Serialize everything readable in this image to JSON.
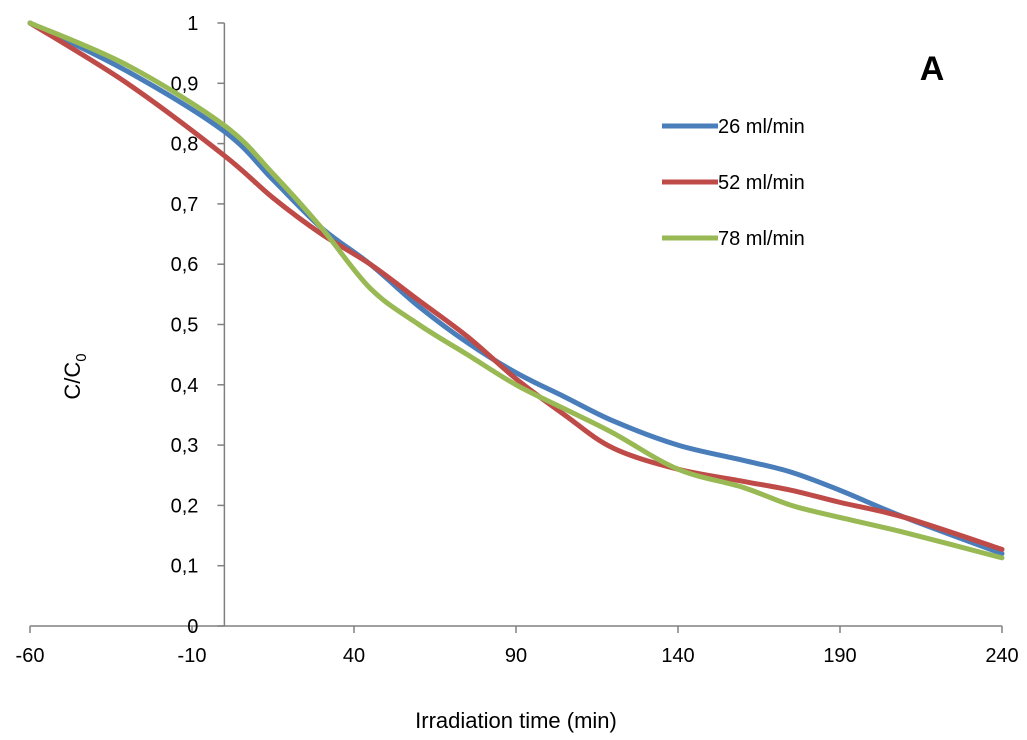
{
  "chart_data": {
    "type": "line",
    "title": "",
    "panel_label": "A",
    "xlabel": "Irradiation time (min)",
    "ylabel_main": "C/C",
    "ylabel_sub": "0",
    "xlim": [
      -60,
      240
    ],
    "ylim": [
      0,
      1
    ],
    "x_ticks": [
      -60,
      -10,
      40,
      90,
      140,
      190,
      240
    ],
    "x_tick_labels": [
      "-60",
      "-10",
      "40",
      "90",
      "140",
      "190",
      "240"
    ],
    "y_ticks": [
      0,
      0.1,
      0.2,
      0.3,
      0.4,
      0.5,
      0.6,
      0.7,
      0.8,
      0.9,
      1
    ],
    "y_tick_labels": [
      "0",
      "0,1",
      "0,2",
      "0,3",
      "0,4",
      "0,5",
      "0,6",
      "0,7",
      "0,8",
      "0,9",
      "1"
    ],
    "y_axis_at_x": 0,
    "grid": false,
    "legend_position": "top-right",
    "series": [
      {
        "name": "26 ml/min",
        "color": "#4a7ebb",
        "x": [
          -60,
          -30,
          0,
          15,
          30,
          45,
          60,
          75,
          90,
          105,
          120,
          140,
          160,
          175,
          190,
          210,
          240
        ],
        "y": [
          1.0,
          0.92,
          0.82,
          0.74,
          0.66,
          0.6,
          0.53,
          0.47,
          0.42,
          0.38,
          0.34,
          0.3,
          0.275,
          0.255,
          0.225,
          0.18,
          0.12
        ]
      },
      {
        "name": "52 ml/min",
        "color": "#be4b48",
        "x": [
          -60,
          -30,
          0,
          15,
          30,
          45,
          60,
          75,
          90,
          105,
          120,
          140,
          160,
          175,
          190,
          210,
          240
        ],
        "y": [
          1.0,
          0.9,
          0.78,
          0.71,
          0.65,
          0.6,
          0.54,
          0.48,
          0.41,
          0.35,
          0.295,
          0.26,
          0.24,
          0.225,
          0.205,
          0.18,
          0.127
        ]
      },
      {
        "name": "78 ml/min",
        "color": "#98b954",
        "x": [
          -60,
          -30,
          0,
          15,
          30,
          45,
          60,
          75,
          90,
          105,
          120,
          140,
          160,
          175,
          190,
          210,
          240
        ],
        "y": [
          1.0,
          0.93,
          0.83,
          0.75,
          0.66,
          0.56,
          0.5,
          0.45,
          0.4,
          0.36,
          0.32,
          0.26,
          0.23,
          0.2,
          0.18,
          0.155,
          0.113
        ]
      }
    ]
  }
}
